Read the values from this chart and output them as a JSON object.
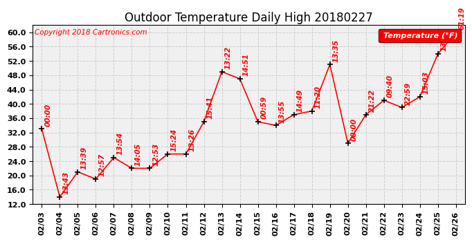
{
  "title": "Outdoor Temperature Daily High 20180227",
  "copyright": "Copyright 2018 Cartronics.com",
  "legend_label": "Temperature (°F)",
  "dates": [
    "02/03",
    "02/04",
    "02/05",
    "02/06",
    "02/07",
    "02/08",
    "02/09",
    "02/10",
    "02/11",
    "02/12",
    "02/13",
    "02/14",
    "02/15",
    "02/16",
    "02/17",
    "02/18",
    "02/19",
    "02/20",
    "02/21",
    "02/22",
    "02/23",
    "02/24",
    "02/25",
    "02/26"
  ],
  "values": [
    33.0,
    14.0,
    21.0,
    19.0,
    25.0,
    22.0,
    22.0,
    26.0,
    26.0,
    35.0,
    49.0,
    47.0,
    35.0,
    34.0,
    37.0,
    38.0,
    51.0,
    29.0,
    37.0,
    41.0,
    39.0,
    42.0,
    54.0,
    60.0
  ],
  "time_labels": [
    "00:00",
    "13:43",
    "13:39",
    "12:57",
    "13:54",
    "14:05",
    "12:53",
    "15:24",
    "13:26",
    "15:41",
    "13:22",
    "14:51",
    "00:59",
    "13:55",
    "14:49",
    "11:20",
    "13:35",
    "00:00",
    "21:22",
    "09:40",
    "22:59",
    "15:03",
    "13:01",
    "61:19"
  ],
  "ylim": [
    12.0,
    62.0
  ],
  "yticks": [
    12.0,
    16.0,
    20.0,
    24.0,
    28.0,
    32.0,
    36.0,
    40.0,
    44.0,
    48.0,
    52.0,
    56.0,
    60.0
  ],
  "line_color": "red",
  "marker_color": "black",
  "background_color": "#f0f0f0",
  "grid_color": "#cccccc",
  "title_fontsize": 12,
  "tick_fontsize": 8,
  "annotation_fontsize": 7.5,
  "copyright_fontsize": 7.5
}
